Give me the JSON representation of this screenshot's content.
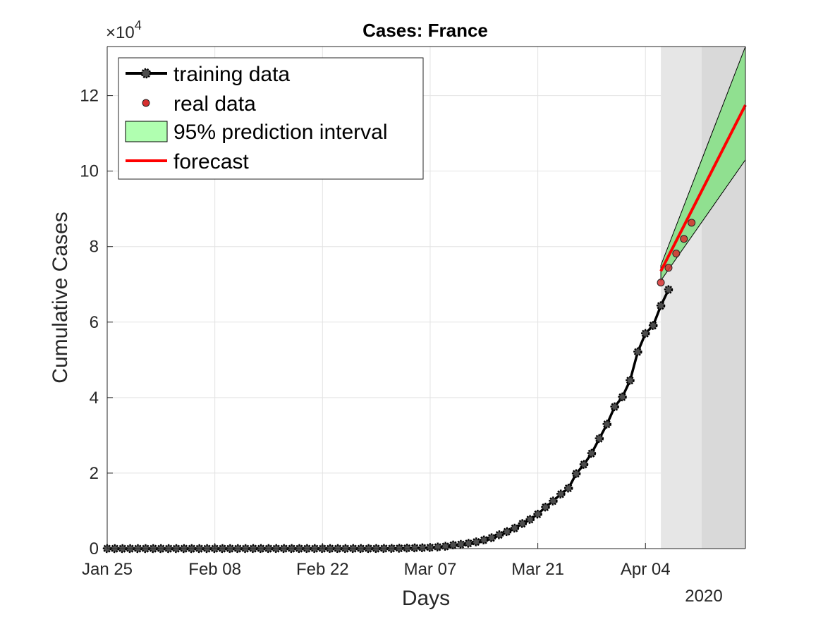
{
  "chart_data": {
    "type": "line",
    "title": "Cases: France",
    "xlabel": "Days",
    "ylabel": "Cumulative Cases",
    "y_exponent_label": "×10",
    "y_exponent_power": "4",
    "year_label": "2020",
    "x_tick_labels": [
      "Jan 25",
      "Feb 08",
      "Feb 22",
      "Mar 07",
      "Mar 21",
      "Apr 04"
    ],
    "x_ticks_day": [
      0,
      14,
      28,
      42,
      56,
      70
    ],
    "y_tick_labels": [
      "0",
      "2",
      "4",
      "6",
      "8",
      "10",
      "12"
    ],
    "y_ticks": [
      0,
      20000,
      40000,
      60000,
      80000,
      100000,
      120000
    ],
    "xlim_day": [
      0,
      83
    ],
    "ylim": [
      0,
      133000
    ],
    "grid": true,
    "legend_position": "top-left",
    "shaded_regions": [
      {
        "start_day": 72,
        "end_day": 77.3,
        "color": "#e6e6e6"
      },
      {
        "start_day": 77.3,
        "end_day": 83,
        "color": "#d9d9d9"
      }
    ],
    "series": [
      {
        "name": "training data",
        "color": "#000000",
        "marker": "gear",
        "x_day": [
          0,
          1,
          2,
          3,
          4,
          5,
          6,
          7,
          8,
          9,
          10,
          11,
          12,
          13,
          14,
          15,
          16,
          17,
          18,
          19,
          20,
          21,
          22,
          23,
          24,
          25,
          26,
          27,
          28,
          29,
          30,
          31,
          32,
          33,
          34,
          35,
          36,
          37,
          38,
          39,
          40,
          41,
          42,
          43,
          44,
          45,
          46,
          47,
          48,
          49,
          50,
          51,
          52,
          53,
          54,
          55,
          56,
          57,
          58,
          59,
          60,
          61,
          62,
          63,
          64,
          65,
          66,
          67,
          68,
          69,
          70,
          71
        ],
        "values": [
          3,
          3,
          3,
          3,
          4,
          5,
          5,
          5,
          6,
          6,
          6,
          6,
          6,
          6,
          11,
          11,
          11,
          11,
          11,
          12,
          12,
          12,
          12,
          12,
          12,
          12,
          12,
          12,
          12,
          12,
          12,
          12,
          12,
          12,
          14,
          18,
          38,
          57,
          100,
          130,
          191,
          212,
          285,
          423,
          613,
          949,
          1126,
          1412,
          1784,
          2281,
          2876,
          3661,
          4499,
          5423,
          6633,
          7730,
          9134,
          10995,
          12612,
          14459,
          16018,
          19856,
          22302,
          25233,
          29155,
          32964,
          37575,
          40174,
          44550,
          52128,
          56989,
          59105
        ]
      },
      {
        "name": "training data (cont.)",
        "legend": false,
        "color": "#000000",
        "marker": "gear",
        "x_day": [
          71,
          72,
          73
        ],
        "values": [
          59105,
          64338,
          68605
        ]
      },
      {
        "name": "real data",
        "color": "#d62f2f",
        "marker": "dot",
        "x_day": [
          72,
          73,
          74,
          75,
          76
        ],
        "values": [
          70478,
          74390,
          78167,
          82048,
          86334
        ]
      },
      {
        "name": "forecast",
        "color": "#ff0000",
        "marker": "none",
        "x_day": [
          72,
          83
        ],
        "values": [
          73500,
          117500
        ]
      }
    ],
    "prediction_interval": {
      "name": "95% prediction interval",
      "fill": "#90e090",
      "x_day": [
        72,
        83
      ],
      "lower": [
        71000,
        103000
      ],
      "upper": [
        75000,
        133000
      ]
    }
  },
  "legend": {
    "items": [
      {
        "label": "training data",
        "kind": "line-marker"
      },
      {
        "label": "real data",
        "kind": "dot"
      },
      {
        "label": "95% prediction interval",
        "kind": "patch"
      },
      {
        "label": "forecast",
        "kind": "line"
      }
    ]
  }
}
